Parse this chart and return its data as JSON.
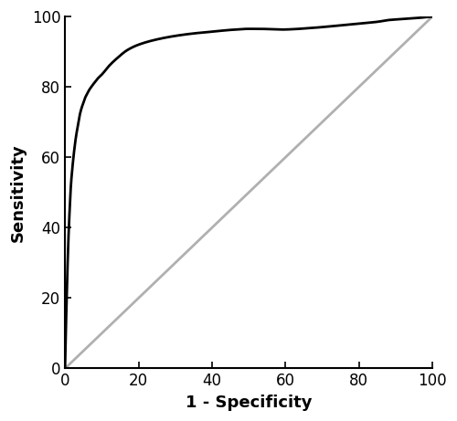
{
  "xlabel": "1 - Specificity",
  "ylabel": "Sensitivity",
  "xlim": [
    0,
    100
  ],
  "ylim": [
    0,
    100
  ],
  "xticks": [
    0,
    20,
    40,
    60,
    80,
    100
  ],
  "yticks": [
    0,
    20,
    40,
    60,
    80,
    100
  ],
  "roc_color": "#000000",
  "diagonal_color": "#b0b0b0",
  "roc_linewidth": 2.0,
  "diagonal_linewidth": 2.0,
  "background_color": "#ffffff",
  "tick_fontsize": 12,
  "label_fontsize": 13,
  "figsize": [
    5.0,
    4.61
  ],
  "dpi": 100,
  "roc_x": [
    0,
    0.1,
    0.3,
    0.5,
    0.8,
    1.0,
    1.3,
    1.6,
    2.0,
    2.5,
    3.0,
    3.5,
    4.0,
    4.5,
    5.0,
    5.5,
    6.0,
    6.5,
    7.0,
    8.0,
    9.0,
    10.0,
    12.0,
    14.0,
    17.0,
    20.0,
    25.0,
    30.0,
    35.0,
    40.0,
    45.0,
    50.0,
    53.0,
    56.0,
    59.0,
    62.0,
    65.0,
    70.0,
    75.0,
    80.0,
    85.0,
    88.0,
    92.0,
    96.0,
    100.0
  ],
  "roc_y": [
    0,
    5,
    14,
    22,
    33,
    39,
    46,
    52,
    57,
    62,
    66,
    69,
    72,
    74,
    75.5,
    77.0,
    78.0,
    79.0,
    79.8,
    81.2,
    82.5,
    83.5,
    86.0,
    88.0,
    90.5,
    92.0,
    93.5,
    94.5,
    95.2,
    95.7,
    96.2,
    96.5,
    96.5,
    96.4,
    96.3,
    96.4,
    96.6,
    97.0,
    97.5,
    98.0,
    98.5,
    99.0,
    99.3,
    99.6,
    100.0
  ]
}
